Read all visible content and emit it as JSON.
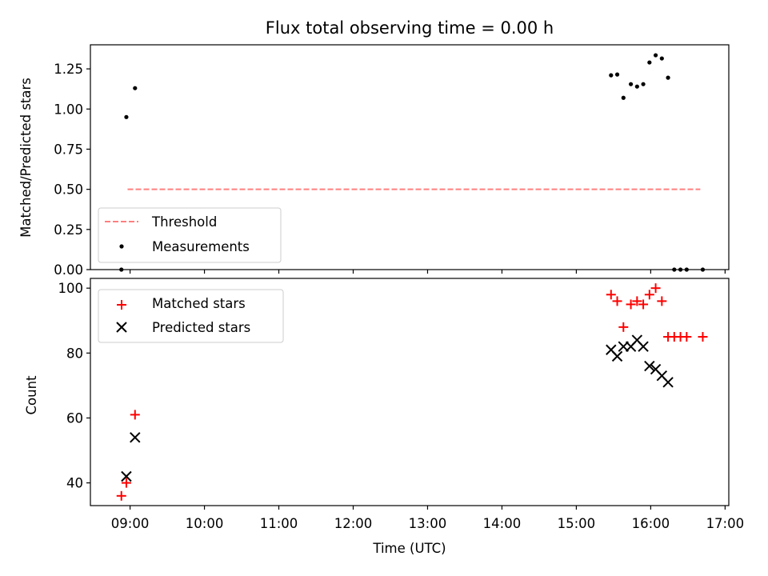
{
  "figure_title": "Flux total observing time = 0.00 h",
  "colors": {
    "threshold": "#ff7f7f",
    "measurement": "#000000",
    "matched": "#ff0000",
    "predicted": "#000000"
  },
  "chart_data": [
    {
      "type": "scatter",
      "title": "Flux total observing time = 0.00 h",
      "xlabel": "",
      "ylabel": "Matched/Predicted stars",
      "xlim": [
        "08:28",
        "17:03"
      ],
      "ylim": [
        0,
        1.4
      ],
      "yticks": [
        0.0,
        0.25,
        0.5,
        0.75,
        1.0,
        1.25
      ],
      "ytick_labels": [
        "0.00",
        "0.25",
        "0.50",
        "0.75",
        "1.00",
        "1.25"
      ],
      "xticks": [
        "09:00",
        "10:00",
        "11:00",
        "12:00",
        "13:00",
        "14:00",
        "15:00",
        "16:00",
        "17:00"
      ],
      "legend_position": "lower-left",
      "series": [
        {
          "name": "Threshold",
          "kind": "dashed-line",
          "color": "#ff7f7f",
          "points": [
            {
              "x": "08:58",
              "y": 0.5
            },
            {
              "x": "16:40",
              "y": 0.5
            }
          ]
        },
        {
          "name": "Measurements",
          "kind": "dot",
          "color": "#000000",
          "points": [
            {
              "x": "08:53",
              "y": 0.0
            },
            {
              "x": "08:57",
              "y": 0.95
            },
            {
              "x": "09:04",
              "y": 1.13
            },
            {
              "x": "15:28",
              "y": 1.21
            },
            {
              "x": "15:33",
              "y": 1.215
            },
            {
              "x": "15:38",
              "y": 1.07
            },
            {
              "x": "15:44",
              "y": 1.155
            },
            {
              "x": "15:49",
              "y": 1.14
            },
            {
              "x": "15:54",
              "y": 1.155
            },
            {
              "x": "15:59",
              "y": 1.29
            },
            {
              "x": "16:04",
              "y": 1.335
            },
            {
              "x": "16:09",
              "y": 1.315
            },
            {
              "x": "16:14",
              "y": 1.195
            },
            {
              "x": "16:19",
              "y": 0.0
            },
            {
              "x": "16:24",
              "y": 0.0
            },
            {
              "x": "16:29",
              "y": 0.0
            },
            {
              "x": "16:42",
              "y": 0.0
            }
          ]
        }
      ]
    },
    {
      "type": "scatter",
      "title": "",
      "xlabel": "Time (UTC)",
      "ylabel": "Count",
      "xlim": [
        "08:28",
        "17:03"
      ],
      "ylim": [
        33,
        103
      ],
      "yticks": [
        40,
        60,
        80,
        100
      ],
      "ytick_labels": [
        "40",
        "60",
        "80",
        "100"
      ],
      "xticks": [
        "09:00",
        "10:00",
        "11:00",
        "12:00",
        "13:00",
        "14:00",
        "15:00",
        "16:00",
        "17:00"
      ],
      "xtick_labels": [
        "09:00",
        "10:00",
        "11:00",
        "12:00",
        "13:00",
        "14:00",
        "15:00",
        "16:00",
        "17:00"
      ],
      "legend_position": "upper-left",
      "series": [
        {
          "name": "Matched stars",
          "kind": "plus",
          "color": "#ff0000",
          "points": [
            {
              "x": "08:53",
              "y": 36
            },
            {
              "x": "08:57",
              "y": 40
            },
            {
              "x": "09:04",
              "y": 61
            },
            {
              "x": "15:28",
              "y": 98
            },
            {
              "x": "15:33",
              "y": 96
            },
            {
              "x": "15:38",
              "y": 88
            },
            {
              "x": "15:44",
              "y": 95
            },
            {
              "x": "15:49",
              "y": 96
            },
            {
              "x": "15:54",
              "y": 95
            },
            {
              "x": "15:59",
              "y": 98
            },
            {
              "x": "16:04",
              "y": 100
            },
            {
              "x": "16:09",
              "y": 96
            },
            {
              "x": "16:14",
              "y": 85
            },
            {
              "x": "16:19",
              "y": 85
            },
            {
              "x": "16:24",
              "y": 85
            },
            {
              "x": "16:29",
              "y": 85
            },
            {
              "x": "16:42",
              "y": 85
            }
          ]
        },
        {
          "name": "Predicted stars",
          "kind": "x",
          "color": "#000000",
          "points": [
            {
              "x": "08:57",
              "y": 42
            },
            {
              "x": "09:04",
              "y": 54
            },
            {
              "x": "15:28",
              "y": 81
            },
            {
              "x": "15:33",
              "y": 79
            },
            {
              "x": "15:38",
              "y": 82
            },
            {
              "x": "15:44",
              "y": 82
            },
            {
              "x": "15:49",
              "y": 84
            },
            {
              "x": "15:54",
              "y": 82
            },
            {
              "x": "15:59",
              "y": 76
            },
            {
              "x": "16:04",
              "y": 75
            },
            {
              "x": "16:09",
              "y": 73
            },
            {
              "x": "16:14",
              "y": 71
            }
          ]
        }
      ]
    }
  ]
}
